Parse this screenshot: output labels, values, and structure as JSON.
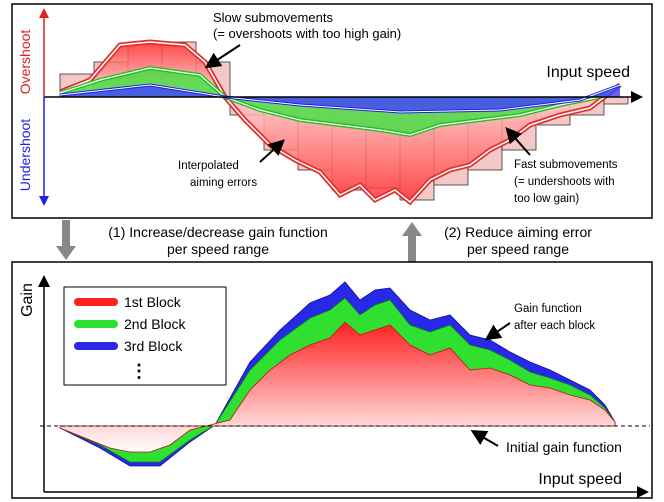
{
  "top_panel": {
    "slow_callout": [
      "Slow submovements",
      "(= overshoots with too high gain)"
    ],
    "axis_label": "Input speed",
    "overshoot": "Overshoot",
    "undershoot": "Undershoot",
    "interp_callout": [
      "Interpolated",
      "aiming errors"
    ],
    "fast_callout": [
      "Fast submovements",
      "(= undershoots with",
      "too low gain)"
    ]
  },
  "steps": [
    {
      "lines": [
        "(1) Increase/decrease gain function",
        "per speed range"
      ]
    },
    {
      "lines": [
        "(2) Reduce aiming error",
        "per speed range"
      ]
    }
  ],
  "bottom_panel": {
    "y_label": "Gain",
    "legend": [
      "1st Block",
      "2nd Block",
      "3rd Block",
      "⋮"
    ],
    "gain_callout": [
      "Gain function",
      "after each block"
    ],
    "initial_callout": "Initial gain function",
    "axis_label": "Input speed"
  }
}
